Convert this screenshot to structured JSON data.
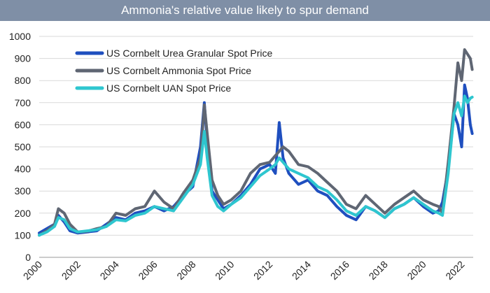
{
  "chart_data": {
    "type": "line",
    "title": "Ammonia's relative value likely to spur demand",
    "xlim": [
      2000,
      2022.6
    ],
    "ylim": [
      0,
      1000
    ],
    "grid": true,
    "legend_position": "top-left",
    "yticks": [
      "0",
      "100",
      "200",
      "300",
      "400",
      "500",
      "600",
      "700",
      "800",
      "900",
      "1000"
    ],
    "xticks": [
      "2000",
      "2002",
      "2004",
      "2006",
      "2008",
      "2010",
      "2012",
      "2014",
      "2016",
      "2018",
      "2020",
      "2022"
    ],
    "series": [
      {
        "name": "US Cornbelt Urea Granular Spot Price",
        "color": "#1f4fbf",
        "x": [
          2000,
          2000.4,
          2000.8,
          2001.0,
          2001.3,
          2001.6,
          2002,
          2002.5,
          2003,
          2003.5,
          2004,
          2004.5,
          2005,
          2005.5,
          2006,
          2006.5,
          2007,
          2007.5,
          2008,
          2008.4,
          2008.6,
          2008.75,
          2009,
          2009.3,
          2009.6,
          2010,
          2010.5,
          2011,
          2011.5,
          2012,
          2012.3,
          2012.5,
          2012.7,
          2013,
          2013.5,
          2014,
          2014.5,
          2015,
          2015.5,
          2016,
          2016.5,
          2017,
          2017.5,
          2018,
          2018.5,
          2019,
          2019.5,
          2020,
          2020.5,
          2020.8,
          2021.0,
          2021.3,
          2021.6,
          2021.8,
          2022.0,
          2022.15,
          2022.3,
          2022.45,
          2022.55
        ],
        "values": [
          110,
          130,
          150,
          190,
          160,
          120,
          110,
          115,
          120,
          150,
          180,
          170,
          200,
          210,
          230,
          210,
          230,
          280,
          320,
          500,
          700,
          520,
          300,
          260,
          220,
          240,
          280,
          330,
          400,
          420,
          380,
          610,
          450,
          380,
          330,
          350,
          300,
          280,
          230,
          190,
          170,
          230,
          210,
          180,
          220,
          240,
          270,
          230,
          200,
          210,
          250,
          400,
          650,
          600,
          500,
          780,
          720,
          600,
          560
        ]
      },
      {
        "name": "US Cornbelt Ammonia Spot Price",
        "color": "#5f6673",
        "x": [
          2000,
          2000.4,
          2000.8,
          2001.0,
          2001.3,
          2001.6,
          2002,
          2002.5,
          2003,
          2003.5,
          2004,
          2004.5,
          2005,
          2005.5,
          2006,
          2006.5,
          2007,
          2007.5,
          2008,
          2008.4,
          2008.6,
          2008.75,
          2009,
          2009.3,
          2009.6,
          2010,
          2010.5,
          2011,
          2011.5,
          2012,
          2012.3,
          2012.5,
          2012.7,
          2013,
          2013.5,
          2014,
          2014.5,
          2015,
          2015.5,
          2016,
          2016.5,
          2017,
          2017.5,
          2018,
          2018.5,
          2019,
          2019.5,
          2020,
          2020.5,
          2020.8,
          2021.0,
          2021.3,
          2021.6,
          2021.8,
          2022.0,
          2022.15,
          2022.3,
          2022.45,
          2022.55
        ],
        "values": [
          100,
          120,
          150,
          220,
          200,
          150,
          115,
          118,
          130,
          140,
          200,
          190,
          220,
          230,
          300,
          250,
          220,
          290,
          350,
          450,
          690,
          560,
          350,
          280,
          240,
          260,
          300,
          380,
          420,
          430,
          460,
          480,
          500,
          480,
          420,
          410,
          380,
          340,
          300,
          240,
          220,
          280,
          240,
          200,
          240,
          270,
          300,
          260,
          240,
          230,
          200,
          430,
          680,
          880,
          800,
          940,
          920,
          900,
          850
        ]
      },
      {
        "name": "US Cornbelt UAN Spot Price",
        "color": "#2ec6cf",
        "x": [
          2000,
          2000.4,
          2000.8,
          2001.0,
          2001.3,
          2001.6,
          2002,
          2002.5,
          2003,
          2003.5,
          2004,
          2004.5,
          2005,
          2005.5,
          2006,
          2006.5,
          2007,
          2007.5,
          2008,
          2008.4,
          2008.6,
          2008.75,
          2009,
          2009.3,
          2009.6,
          2010,
          2010.5,
          2011,
          2011.5,
          2012,
          2012.3,
          2012.5,
          2012.7,
          2013,
          2013.5,
          2014,
          2014.5,
          2015,
          2015.5,
          2016,
          2016.5,
          2017,
          2017.5,
          2018,
          2018.5,
          2019,
          2019.5,
          2020,
          2020.5,
          2020.8,
          2021.0,
          2021.3,
          2021.6,
          2021.8,
          2022.0,
          2022.15,
          2022.3,
          2022.45,
          2022.55
        ],
        "values": [
          100,
          115,
          140,
          180,
          170,
          130,
          115,
          120,
          125,
          140,
          170,
          165,
          190,
          200,
          230,
          220,
          210,
          270,
          330,
          420,
          570,
          450,
          280,
          230,
          210,
          240,
          270,
          320,
          370,
          400,
          420,
          450,
          430,
          400,
          380,
          360,
          320,
          300,
          260,
          210,
          190,
          230,
          210,
          180,
          220,
          240,
          270,
          240,
          210,
          200,
          190,
          380,
          650,
          700,
          640,
          730,
          700,
          720,
          725
        ]
      }
    ]
  }
}
